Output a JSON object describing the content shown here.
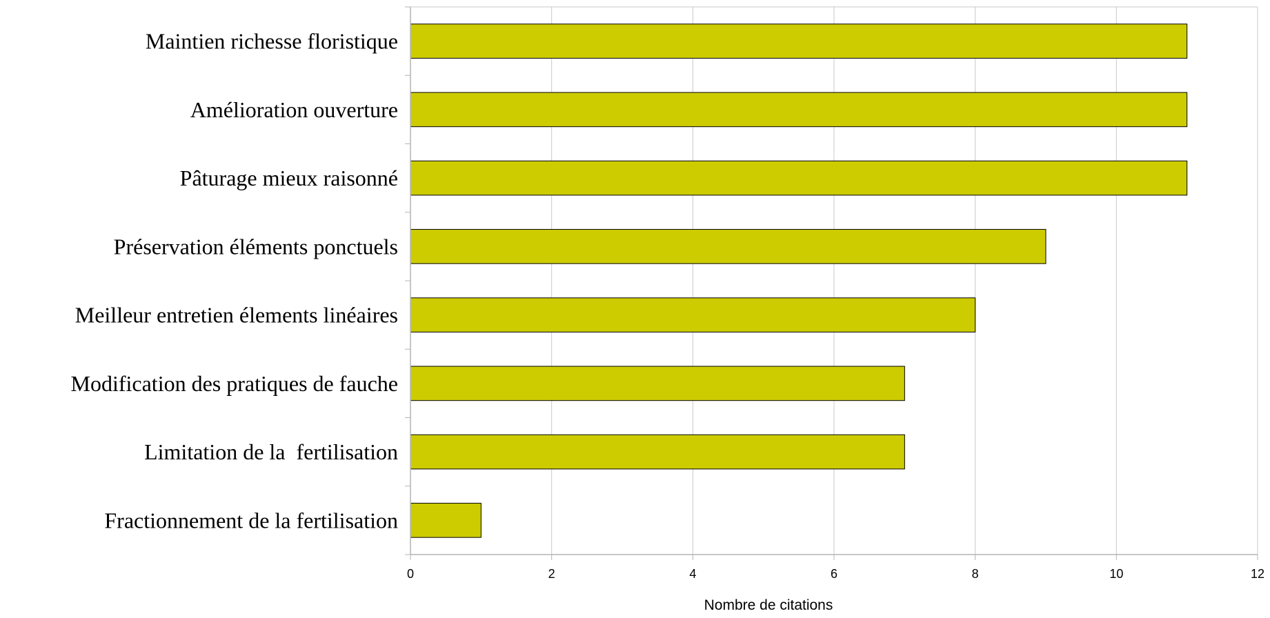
{
  "chart_data": {
    "type": "bar",
    "orientation": "horizontal",
    "categories": [
      "Maintien richesse floristique",
      "Amélioration ouverture",
      "Pâturage mieux raisonné",
      "Préservation éléments ponctuels",
      "Meilleur entretien élements linéaires",
      "Modification des pratiques de fauche",
      "Limitation de la  fertilisation",
      "Fractionnement de la fertilisation"
    ],
    "values": [
      11,
      11,
      11,
      9,
      8,
      7,
      7,
      1
    ],
    "xlabel": "Nombre de citations",
    "ylabel": "",
    "xlim": [
      0,
      12
    ],
    "xticks": [
      "0",
      "2",
      "4",
      "6",
      "8",
      "10",
      "12"
    ],
    "grid": true,
    "colors": {
      "bar": "#cccc00",
      "bar_border": "#000000",
      "grid": "#c8c8c8",
      "axis": "#b4b4b4"
    }
  }
}
